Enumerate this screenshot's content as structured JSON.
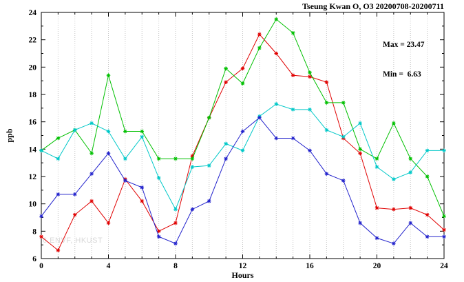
{
  "header": {
    "title": "Tseung Kwan O, O3 20200708-20200711"
  },
  "annotations": {
    "max": "Max = 23.47",
    "min": "Min =  6.63"
  },
  "watermark": "6 ENVF, HKUST",
  "chart_data": {
    "type": "line",
    "title": "Tseung Kwan O, O3 20200708-20200711",
    "xlabel": "Hours",
    "ylabel": "ppb",
    "xlim": [
      0,
      24
    ],
    "ylim": [
      6,
      24
    ],
    "xticks_major": [
      0,
      4,
      8,
      12,
      16,
      20,
      24
    ],
    "yticks_major": [
      6,
      8,
      10,
      12,
      14,
      16,
      18,
      20,
      22,
      24
    ],
    "grid": "vertical-dotted-every-hour",
    "legend": "none",
    "marker": "asterisk",
    "stat_max": 23.47,
    "stat_min": 6.63,
    "x": [
      0,
      1,
      2,
      3,
      4,
      5,
      6,
      7,
      8,
      9,
      10,
      11,
      12,
      13,
      14,
      15,
      16,
      17,
      18,
      19,
      20,
      21,
      22,
      23,
      24
    ],
    "series": [
      {
        "name": "series-red",
        "color": "#e00000",
        "values": [
          7.6,
          6.6,
          9.2,
          10.2,
          8.6,
          11.8,
          10.2,
          8.0,
          8.6,
          13.5,
          16.3,
          18.9,
          19.9,
          22.4,
          21.0,
          19.4,
          19.3,
          18.9,
          14.8,
          13.7,
          9.7,
          9.6,
          9.7,
          9.2,
          8.1
        ]
      },
      {
        "name": "series-green",
        "color": "#00c000",
        "values": [
          13.9,
          14.8,
          15.4,
          13.7,
          19.4,
          15.3,
          15.3,
          13.3,
          13.3,
          13.3,
          16.3,
          19.9,
          18.8,
          21.4,
          23.5,
          22.5,
          19.6,
          17.4,
          17.4,
          14.0,
          13.3,
          15.9,
          13.3,
          12.0,
          9.1
        ]
      },
      {
        "name": "series-cyan",
        "color": "#00c8c8",
        "values": [
          13.9,
          13.3,
          15.4,
          15.9,
          15.3,
          13.3,
          14.9,
          11.9,
          9.6,
          12.7,
          12.8,
          14.4,
          13.9,
          16.4,
          17.3,
          16.9,
          16.9,
          15.4,
          14.9,
          15.9,
          12.7,
          11.8,
          12.3,
          13.9,
          13.9
        ]
      },
      {
        "name": "series-blue",
        "color": "#2222cc",
        "values": [
          9.1,
          10.7,
          10.7,
          12.2,
          13.7,
          11.7,
          11.2,
          7.6,
          7.1,
          9.6,
          10.2,
          13.3,
          15.3,
          16.3,
          14.8,
          14.8,
          13.9,
          12.2,
          11.7,
          8.6,
          7.5,
          7.1,
          8.6,
          7.6,
          7.6
        ]
      }
    ]
  }
}
